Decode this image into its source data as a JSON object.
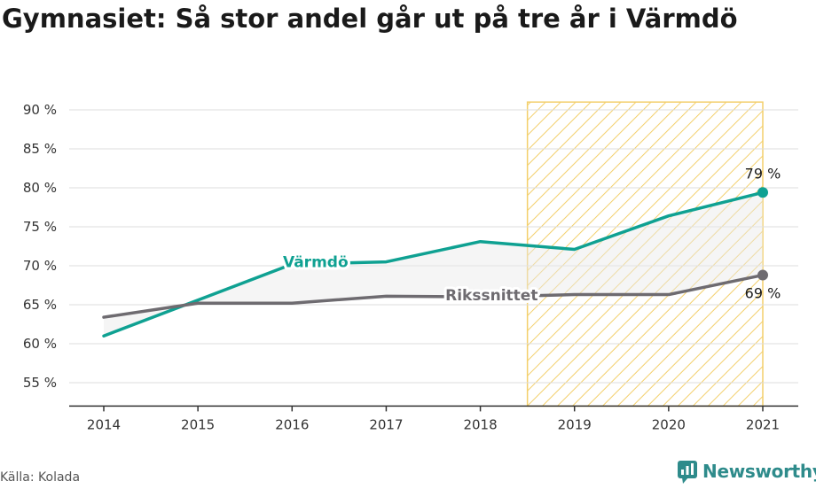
{
  "title": "Gymnasiet: Så stor andel går ut på tre år i Värmdö",
  "source": "Källa: Kolada",
  "brand": {
    "name": "Newsworthy",
    "icon": "chart-speech-bubble-icon",
    "color": "#2e8b8b"
  },
  "chart_data": {
    "type": "line",
    "x": [
      2014,
      2015,
      2016,
      2017,
      2018,
      2019,
      2020,
      2021
    ],
    "y_ticks": [
      55,
      60,
      65,
      70,
      75,
      80,
      85,
      90
    ],
    "y_tick_labels": [
      "55 %",
      "60 %",
      "65 %",
      "70 %",
      "75 %",
      "80 %",
      "85 %",
      "90 %"
    ],
    "ylim": [
      52,
      91
    ],
    "grid": true,
    "highlight_range": [
      2018.5,
      2021
    ],
    "series": [
      {
        "name": "Värmdö",
        "color": "#0fa192",
        "values": [
          61.0,
          65.6,
          70.2,
          70.5,
          73.1,
          72.1,
          76.4,
          79.4
        ],
        "end_label": "79 %"
      },
      {
        "name": "Rikssnittet",
        "color": "#6e6b70",
        "values": [
          63.4,
          65.2,
          65.2,
          66.1,
          66.0,
          66.3,
          66.3,
          68.8
        ],
        "end_label": "69 %"
      }
    ]
  }
}
